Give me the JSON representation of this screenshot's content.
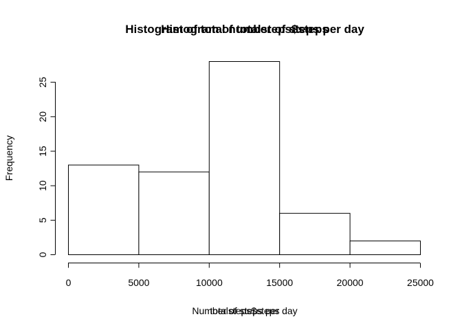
{
  "chart_data": {
    "type": "bar",
    "titles": [
      "Histogram of total number of steps per day",
      "Histogram of totalsteps$steps"
    ],
    "xlabels": [
      "Number of steps per day",
      "totalsteps$steps"
    ],
    "ylabel": "Frequency",
    "bins": [
      {
        "from": 0,
        "to": 5000,
        "count": 13
      },
      {
        "from": 5000,
        "to": 10000,
        "count": 12
      },
      {
        "from": 10000,
        "to": 15000,
        "count": 28
      },
      {
        "from": 15000,
        "to": 20000,
        "count": 6
      },
      {
        "from": 20000,
        "to": 25000,
        "count": 2
      }
    ],
    "xlim": [
      0,
      25000
    ],
    "ylim": [
      0,
      28
    ],
    "xticks": [
      0,
      5000,
      10000,
      15000,
      20000,
      25000
    ],
    "yticks": [
      0,
      5,
      10,
      15,
      20,
      25
    ],
    "grid": false,
    "bar_fill": "#ffffff",
    "bar_stroke": "#000000"
  }
}
